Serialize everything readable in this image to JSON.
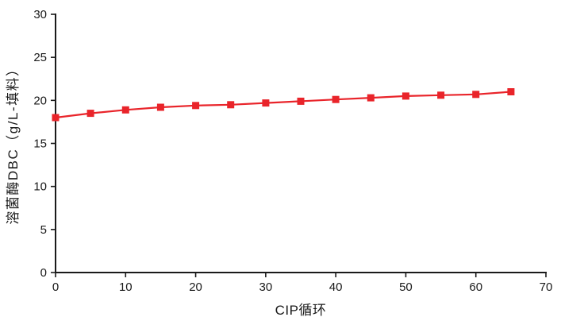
{
  "chart_data": {
    "type": "line",
    "title": "",
    "xlabel": "CIP循环",
    "ylabel": "溶菌酶DBC（g/L-填料）",
    "x": [
      0,
      5,
      10,
      15,
      20,
      25,
      30,
      35,
      40,
      45,
      50,
      55,
      60,
      65
    ],
    "series": [
      {
        "name": "溶菌酶DBC",
        "values": [
          18.0,
          18.5,
          18.9,
          19.2,
          19.4,
          19.5,
          19.7,
          19.9,
          20.1,
          20.3,
          20.5,
          20.6,
          20.7,
          21.0
        ]
      }
    ],
    "xlim": [
      0,
      70
    ],
    "ylim": [
      0,
      30
    ],
    "xticks": [
      0,
      10,
      20,
      30,
      40,
      50,
      60,
      70
    ],
    "yticks": [
      0,
      5,
      10,
      15,
      20,
      25,
      30
    ],
    "grid": false,
    "legend_position": "none",
    "marker": "square",
    "line_color": "#e9242a",
    "marker_color": "#e9242a",
    "axis_color": "#1a1a1a",
    "text_color": "#1a1a1a"
  }
}
